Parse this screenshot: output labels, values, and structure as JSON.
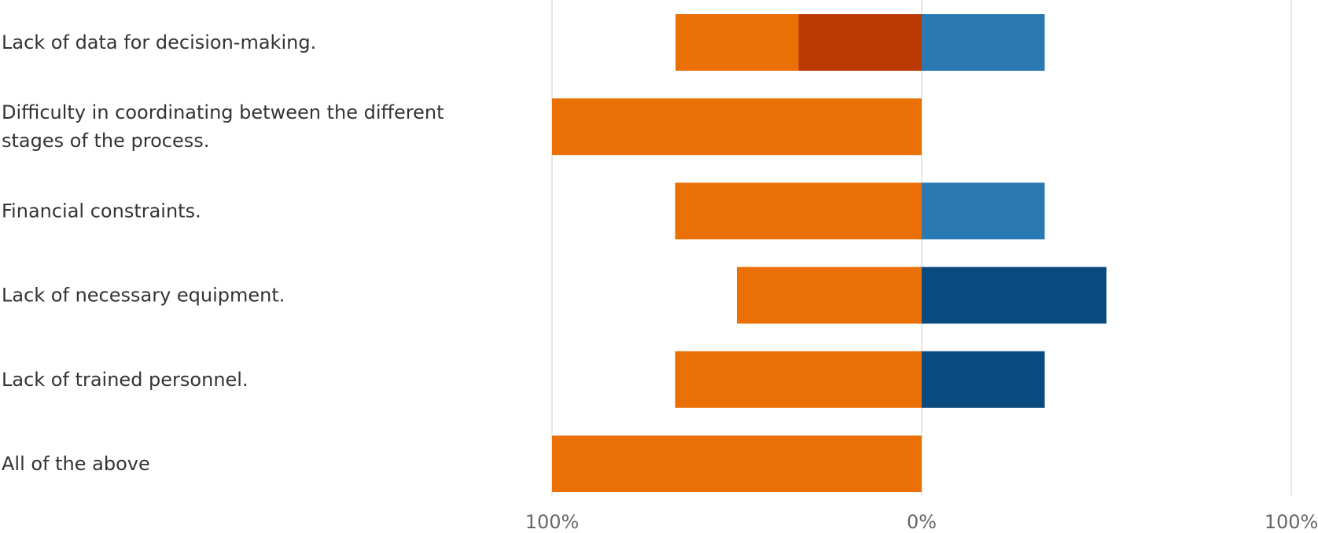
{
  "chart_data": {
    "type": "bar",
    "orientation": "horizontal",
    "layout": "diverging-stacked",
    "categories": [
      "Lack of data for decision-making.",
      "Difficulty in coordinating between the different stages of the process.",
      "Financial constraints.",
      "Lack of necessary equipment.",
      "Lack of trained personnel.",
      "All of the above"
    ],
    "series": [
      {
        "side": "left",
        "color": "#BB3A04",
        "values": [
          33.3,
          0,
          0,
          0,
          0,
          0
        ]
      },
      {
        "side": "left",
        "color": "#EA7006",
        "values": [
          33.3,
          100,
          66.7,
          50,
          66.7,
          100
        ]
      },
      {
        "side": "right",
        "color": "#0A4B7F",
        "values": [
          0,
          0,
          0,
          50,
          33.3,
          0
        ]
      },
      {
        "side": "right",
        "color": "#2B79B2",
        "values": [
          33.3,
          0,
          33.3,
          0,
          0,
          0
        ]
      }
    ],
    "xlim": [
      -100,
      100
    ],
    "tick_labels": [
      "100%",
      "0%",
      "100%"
    ],
    "grid": true,
    "legend": "none"
  }
}
